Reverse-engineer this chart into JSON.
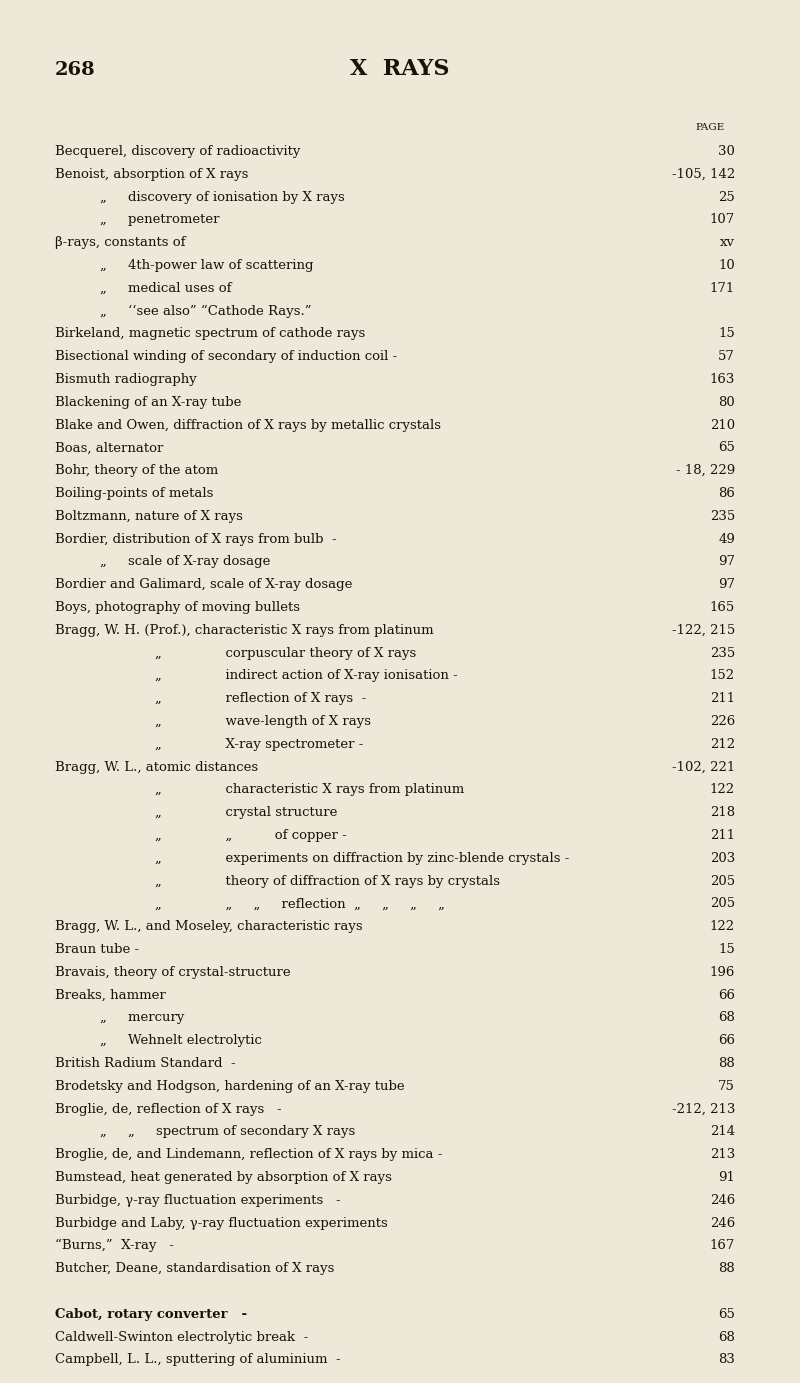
{
  "page_number": "268",
  "header": "X  RAYS",
  "background_color": "#ede8d8",
  "text_color": "#1a1208",
  "page_label": "PAGE",
  "figwidth": 8.0,
  "figheight": 13.83,
  "dpi": 100,
  "lines": [
    {
      "indent": 0,
      "text": "Becquerel, discovery of radioactivity",
      "dots": true,
      "page": "30"
    },
    {
      "indent": 0,
      "text": "Benoist, absorption of X rays",
      "dots": true,
      "page": "-105, 142"
    },
    {
      "indent": 1,
      "text": "„     discovery of ionisation by X rays",
      "dots": true,
      "page": "25"
    },
    {
      "indent": 1,
      "text": "„     penetrometer",
      "dots": true,
      "page": "107"
    },
    {
      "indent": 0,
      "text": "β-rays, constants of",
      "dots": true,
      "page": "xv"
    },
    {
      "indent": 1,
      "text": "„     4th-power law of scattering",
      "dots": true,
      "page": "10"
    },
    {
      "indent": 1,
      "text": "„     medical uses of",
      "dots": true,
      "page": "171"
    },
    {
      "indent": 1,
      "text": "„     ‘‘see also” “Cathode Rays.”",
      "dots": false,
      "page": ""
    },
    {
      "indent": 0,
      "text": "Birkeland, magnetic spectrum of cathode rays",
      "dots": true,
      "page": "15"
    },
    {
      "indent": 0,
      "text": "Bisectional winding of secondary of induction coil -",
      "dots": true,
      "page": "57"
    },
    {
      "indent": 0,
      "text": "Bismuth radiography",
      "dots": true,
      "page": "163"
    },
    {
      "indent": 0,
      "text": "Blackening of an X-ray tube",
      "dots": true,
      "page": "80"
    },
    {
      "indent": 0,
      "text": "Blake and Owen, diffraction of X rays by metallic crystals",
      "dots": true,
      "page": "210"
    },
    {
      "indent": 0,
      "text": "Boas, alternator",
      "dots": true,
      "page": "65"
    },
    {
      "indent": 0,
      "text": "Bohr, theory of the atom",
      "dots": true,
      "page": "- 18, 229"
    },
    {
      "indent": 0,
      "text": "Boiling-points of metals",
      "dots": true,
      "page": "86"
    },
    {
      "indent": 0,
      "text": "Boltzmann, nature of X rays",
      "dots": true,
      "page": "235"
    },
    {
      "indent": 0,
      "text": "Bordier, distribution of X rays from bulb  -",
      "dots": true,
      "page": "49"
    },
    {
      "indent": 1,
      "text": "„     scale of X-ray dosage",
      "dots": true,
      "page": "97"
    },
    {
      "indent": 0,
      "text": "Bordier and Galimard, scale of X-ray dosage",
      "dots": true,
      "page": "97"
    },
    {
      "indent": 0,
      "text": "Boys, photography of moving bullets",
      "dots": true,
      "page": "165"
    },
    {
      "indent": 0,
      "text": "Bragg, W. H. (Prof.), characteristic X rays from platinum",
      "dots": false,
      "page": "-122, 215"
    },
    {
      "indent": 2,
      "text": "„               corpuscular theory of X rays",
      "dots": true,
      "page": "235"
    },
    {
      "indent": 2,
      "text": "„               indirect action of X-ray ionisation -",
      "dots": true,
      "page": "152"
    },
    {
      "indent": 2,
      "text": "„               reflection of X rays  -",
      "dots": true,
      "page": "211"
    },
    {
      "indent": 2,
      "text": "„               wave-length of X rays",
      "dots": true,
      "page": "226"
    },
    {
      "indent": 2,
      "text": "„               X-ray spectrometer -",
      "dots": true,
      "page": "212"
    },
    {
      "indent": 0,
      "text": "Bragg, W. L., atomic distances",
      "dots": true,
      "page": "-102, 221"
    },
    {
      "indent": 2,
      "text": "„               characteristic X rays from platinum",
      "dots": true,
      "page": "122"
    },
    {
      "indent": 2,
      "text": "„               crystal structure",
      "dots": true,
      "page": "218"
    },
    {
      "indent": 2,
      "text": "„               „          of copper -",
      "dots": true,
      "page": "211"
    },
    {
      "indent": 2,
      "text": "„               experiments on diffraction by zinc-blende crystals -",
      "dots": true,
      "page": "203"
    },
    {
      "indent": 2,
      "text": "„               theory of diffraction of X rays by crystals",
      "dots": true,
      "page": "205"
    },
    {
      "indent": 2,
      "text": "„               „     „     reflection  „     „     „     „",
      "dots": true,
      "page": "205"
    },
    {
      "indent": 0,
      "text": "Bragg, W. L., and Moseley, characteristic rays",
      "dots": true,
      "page": "122"
    },
    {
      "indent": 0,
      "text": "Braun tube -",
      "dots": true,
      "page": "15"
    },
    {
      "indent": 0,
      "text": "Bravais, theory of crystal-structure",
      "dots": true,
      "page": "196"
    },
    {
      "indent": 0,
      "text": "Breaks, hammer",
      "dots": true,
      "page": "66"
    },
    {
      "indent": 1,
      "text": "„     mercury",
      "dots": true,
      "page": "68"
    },
    {
      "indent": 1,
      "text": "„     Wehnelt electrolytic",
      "dots": true,
      "page": "66"
    },
    {
      "indent": 0,
      "text": "British Radium Standard  -",
      "dots": true,
      "page": "88"
    },
    {
      "indent": 0,
      "text": "Brodetsky and Hodgson, hardening of an X-ray tube",
      "dots": true,
      "page": "75"
    },
    {
      "indent": 0,
      "text": "Broglie, de, reflection of X rays   -",
      "dots": true,
      "page": "-212, 213"
    },
    {
      "indent": 1,
      "text": "„     „     spectrum of secondary X rays",
      "dots": true,
      "page": "214"
    },
    {
      "indent": 0,
      "text": "Broglie, de, and Lindemann, reflection of X rays by mica -",
      "dots": true,
      "page": "213"
    },
    {
      "indent": 0,
      "text": "Bumstead, heat generated by absorption of X rays",
      "dots": true,
      "page": "91"
    },
    {
      "indent": 0,
      "text": "Burbidge, γ-ray fluctuation experiments   -",
      "dots": true,
      "page": "246"
    },
    {
      "indent": 0,
      "text": "Burbidge and Laby, γ-ray fluctuation experiments",
      "dots": true,
      "page": "246"
    },
    {
      "indent": 0,
      "text": "“Burns,”  X-ray   -",
      "dots": true,
      "page": "167"
    },
    {
      "indent": 0,
      "text": "Butcher, Deane, standardisation of X rays",
      "dots": true,
      "page": "88"
    },
    {
      "indent": -1,
      "text": "",
      "dots": false,
      "page": ""
    },
    {
      "indent": 0,
      "text": "Cabot, rotary converter   -",
      "dots": true,
      "page": "65",
      "bold_name": true
    },
    {
      "indent": 0,
      "text": "Caldwell-Swinton electrolytic break  -",
      "dots": true,
      "page": "68"
    },
    {
      "indent": 0,
      "text": "Campbell, L. L., sputtering of aluminium  -",
      "dots": true,
      "page": "83"
    }
  ]
}
